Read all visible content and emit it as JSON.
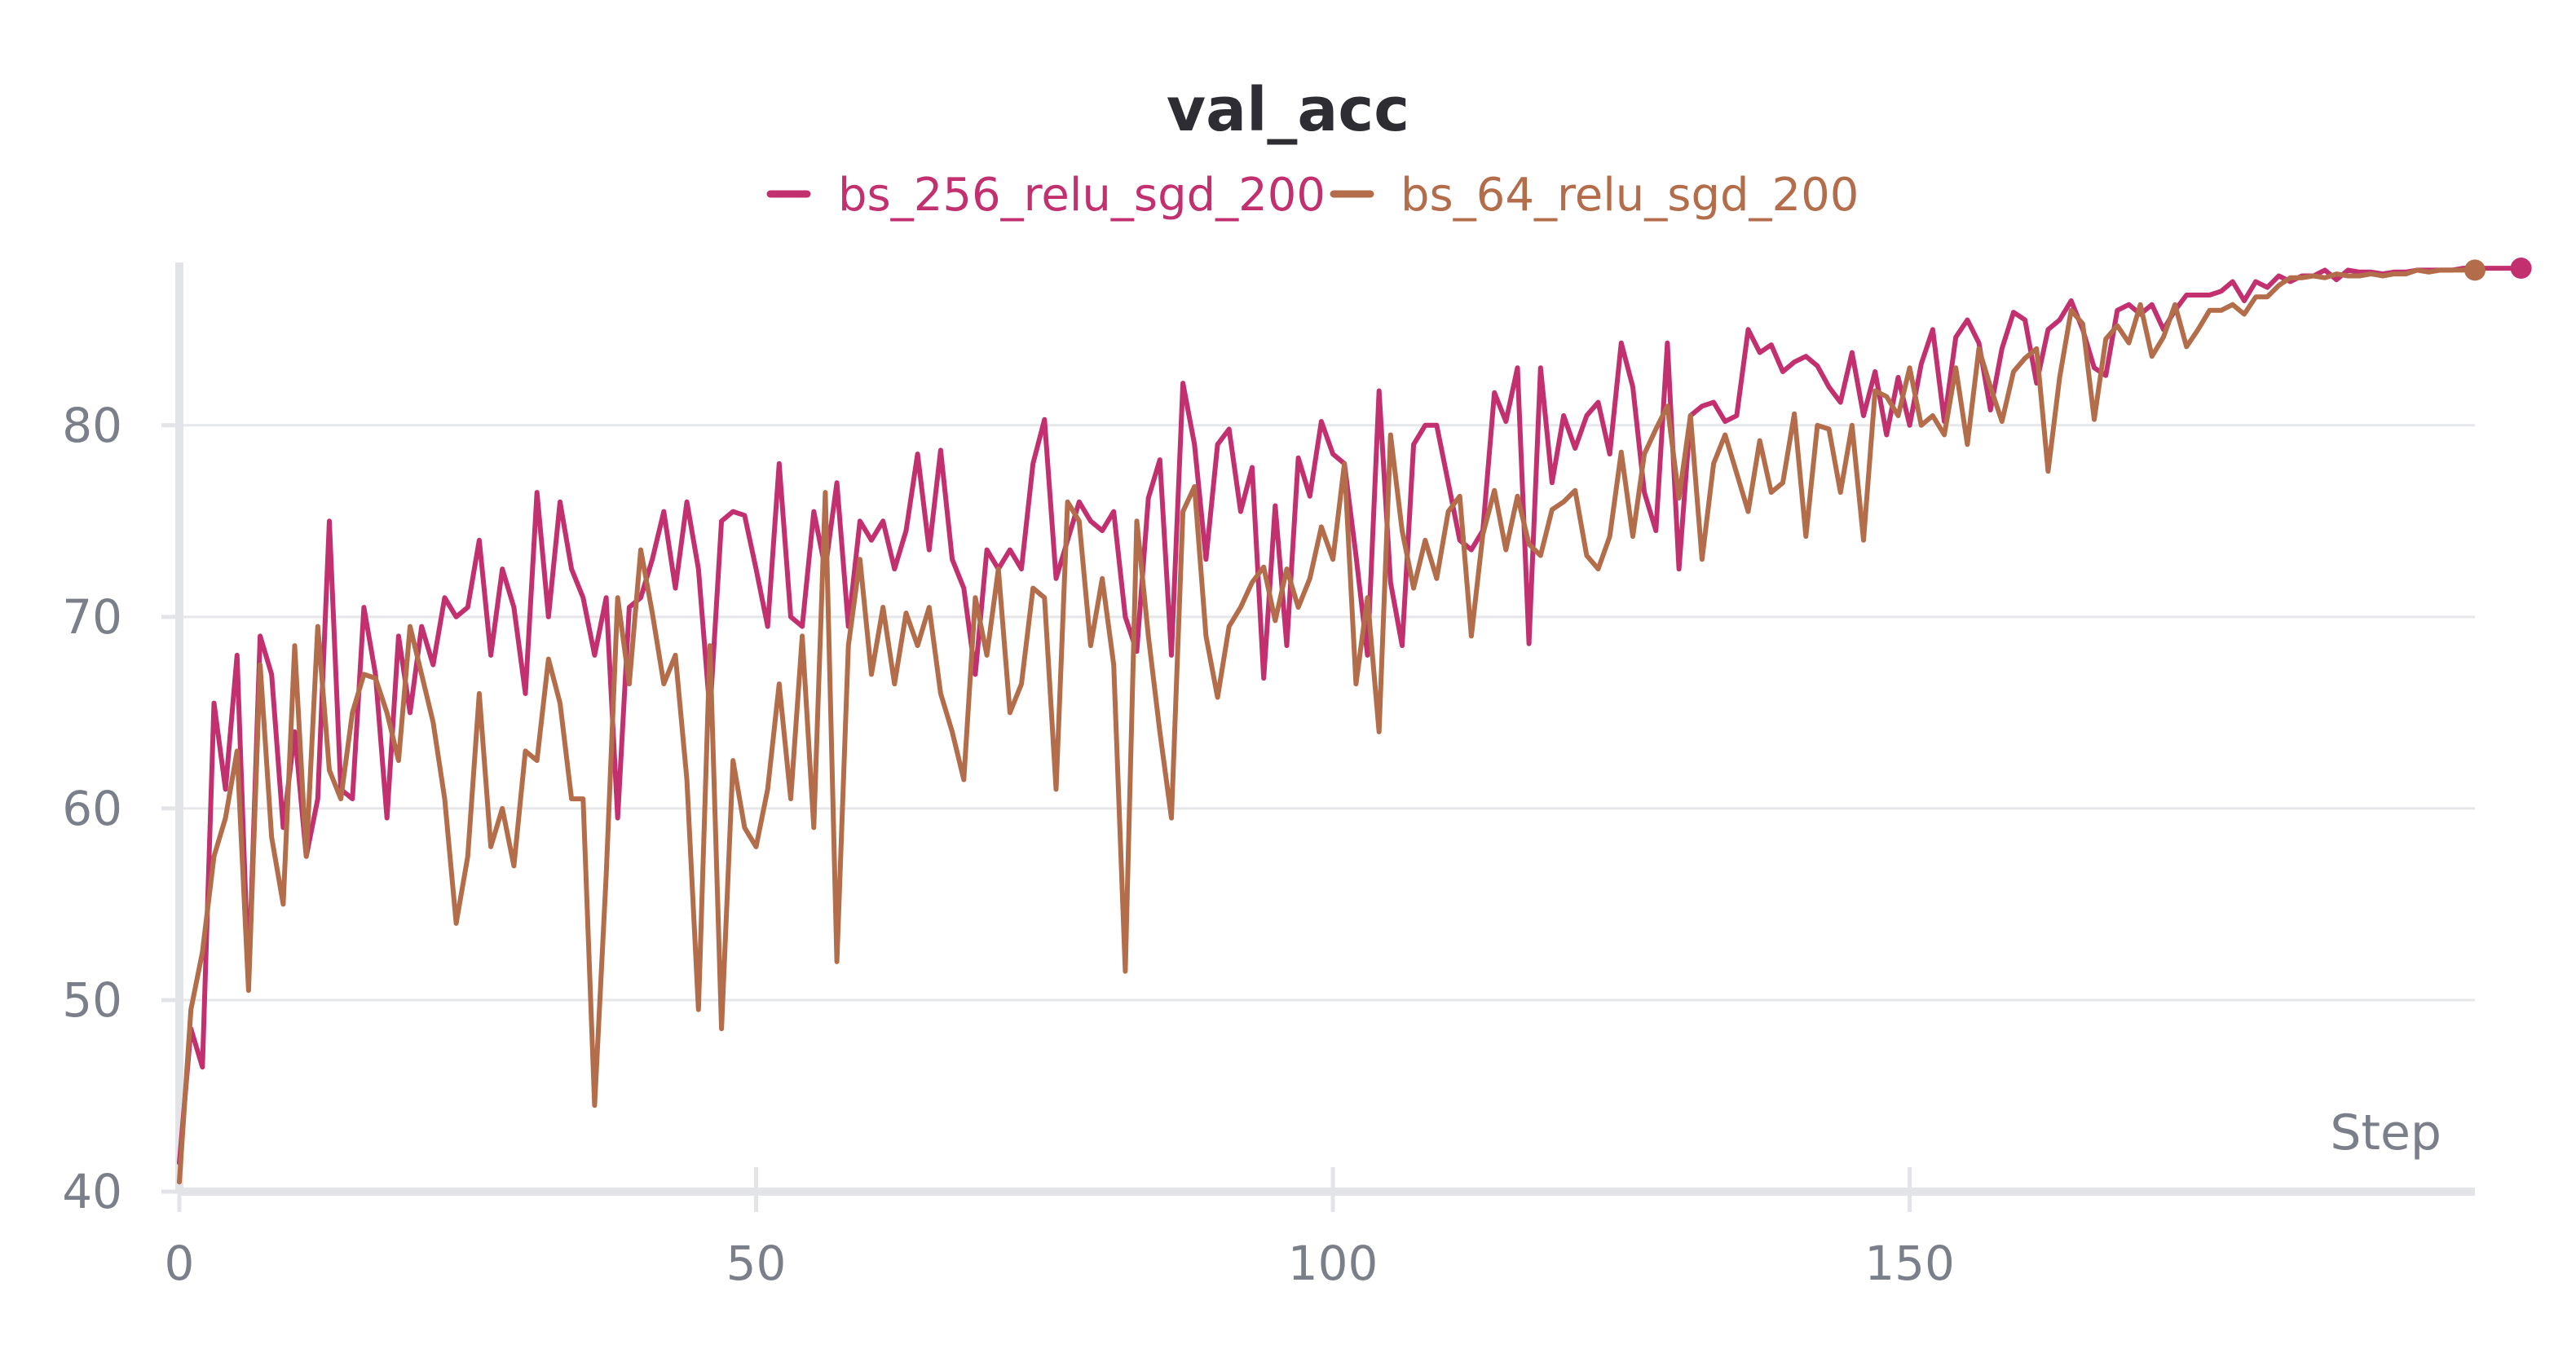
{
  "chart_data": {
    "type": "line",
    "title": "val_acc",
    "xlabel": "Step",
    "ylabel": "",
    "xlim": [
      0,
      199
    ],
    "ylim": [
      40,
      88.5
    ],
    "x_ticks": [
      0,
      50,
      100,
      150
    ],
    "y_ticks": [
      40,
      50,
      60,
      70,
      80
    ],
    "grid": true,
    "legend_position": "top-center",
    "series": [
      {
        "name": "bs_256_relu_sgd_200",
        "color": "#c2306f",
        "values": [
          41.5,
          48.5,
          46.5,
          65.5,
          61,
          68,
          51,
          69,
          67,
          59,
          64,
          57.5,
          60.5,
          75,
          61,
          60.5,
          70.5,
          67,
          59.5,
          69,
          65,
          69.5,
          67.5,
          71,
          70,
          70.5,
          74,
          68,
          72.5,
          70.5,
          66,
          76.5,
          70,
          76,
          72.5,
          71,
          68,
          71,
          59.5,
          70.5,
          71,
          73,
          75.5,
          71.5,
          76,
          72.5,
          65,
          75,
          75.5,
          75.3,
          72.5,
          69.5,
          78,
          70,
          69.5,
          75.5,
          72.5,
          77,
          69.5,
          75,
          74,
          75,
          72.5,
          74.5,
          78.5,
          73.5,
          78.7,
          73,
          71.5,
          67,
          73.5,
          72.5,
          73.5,
          72.5,
          78,
          80.3,
          72,
          74,
          76,
          75,
          74.5,
          75.5,
          70,
          68.2,
          76.2,
          78.2,
          68,
          82.2,
          79,
          73,
          79,
          79.8,
          75.5,
          77.8,
          66.8,
          75.8,
          68.5,
          78.3,
          76.3,
          80.2,
          78.5,
          78,
          73.2,
          68,
          81.8,
          71.8,
          68.5,
          79,
          80,
          80,
          77,
          74,
          73.5,
          74.5,
          81.7,
          80.2,
          83,
          68.6,
          83,
          77,
          80.5,
          78.8,
          80.5,
          81.2,
          78.5,
          84.3,
          82,
          76.5,
          74.5,
          84.3,
          72.5,
          80.5,
          81,
          81.2,
          80.2,
          80.5,
          85,
          83.8,
          84.2,
          82.8,
          83.3,
          83.6,
          83.1,
          82,
          81.2,
          83.8,
          80.5,
          82.8,
          79.5,
          82.5,
          80,
          83.2,
          85,
          80.2,
          84.6,
          85.5,
          84.3,
          80.8,
          84,
          85.9,
          85.5,
          82.2,
          85,
          85.5,
          86.5,
          85,
          83,
          82.6,
          86,
          86.3,
          85.8,
          86.3,
          85,
          86,
          86.8,
          86.8,
          86.8,
          87,
          87.5,
          86.5,
          87.5,
          87.2,
          87.8,
          87.5,
          87.8,
          87.8,
          88.1,
          87.6,
          88.1,
          88,
          88,
          87.9,
          88,
          88,
          88.1,
          88.1,
          88.1,
          88.1,
          88.2,
          88.2,
          88.2,
          88.2,
          88.2,
          88.2
        ]
      },
      {
        "name": "bs_64_relu_sgd_200",
        "color": "#b36d4a",
        "values": [
          40.5,
          49.5,
          52.5,
          57.5,
          59.5,
          63,
          50.5,
          67.5,
          58.5,
          55,
          68.5,
          57.5,
          69.5,
          62,
          60.5,
          65,
          67,
          66.8,
          65,
          62.5,
          69.5,
          67,
          64.5,
          60.5,
          54,
          57.5,
          66,
          58,
          60,
          57,
          63,
          62.5,
          67.8,
          65.5,
          60.5,
          60.5,
          44.5,
          56.5,
          71,
          66.5,
          73.5,
          70.2,
          66.5,
          68,
          61.5,
          49.5,
          68.5,
          48.5,
          62.5,
          59,
          58,
          61,
          66.5,
          60.5,
          69,
          59,
          76.5,
          52,
          68.5,
          73,
          67,
          70.5,
          66.5,
          70.2,
          68.5,
          70.5,
          66,
          64,
          61.5,
          71,
          68,
          72.5,
          65,
          66.5,
          71.5,
          71,
          61,
          76,
          75,
          68.5,
          72,
          67.5,
          51.5,
          75,
          69,
          64,
          59.5,
          75.5,
          76.8,
          69,
          65.8,
          69.5,
          70.5,
          71.8,
          72.6,
          69.8,
          72.5,
          70.5,
          72,
          74.7,
          73,
          78,
          66.5,
          71,
          64,
          79.5,
          74.5,
          71.5,
          74,
          72,
          75.5,
          76.3,
          69,
          74.3,
          76.6,
          73.5,
          76.3,
          73.8,
          73.2,
          75.6,
          76,
          76.6,
          73.2,
          72.5,
          74.2,
          78.6,
          74.2,
          78.5,
          79.8,
          81,
          76.2,
          80.5,
          73,
          78,
          79.5,
          77.5,
          75.5,
          79.2,
          76.5,
          77,
          80.6,
          74.2,
          80,
          79.8,
          76.5,
          80,
          74,
          81.8,
          81.5,
          80.5,
          83,
          80,
          80.5,
          79.5,
          83,
          79,
          84,
          82,
          80.2,
          82.8,
          83.5,
          84,
          77.6,
          82.5,
          86,
          85.3,
          80.3,
          84.5,
          85.2,
          84.3,
          86.3,
          83.6,
          84.6,
          86.3,
          84.1,
          85,
          86,
          86,
          86.3,
          85.8,
          86.7,
          86.7,
          87.3,
          87.7,
          87.7,
          87.8,
          87.7,
          87.9,
          87.8,
          87.8,
          87.9,
          87.8,
          87.9,
          87.9,
          88.1,
          88,
          88.1,
          88.1,
          88.1,
          88.1
        ]
      }
    ]
  }
}
